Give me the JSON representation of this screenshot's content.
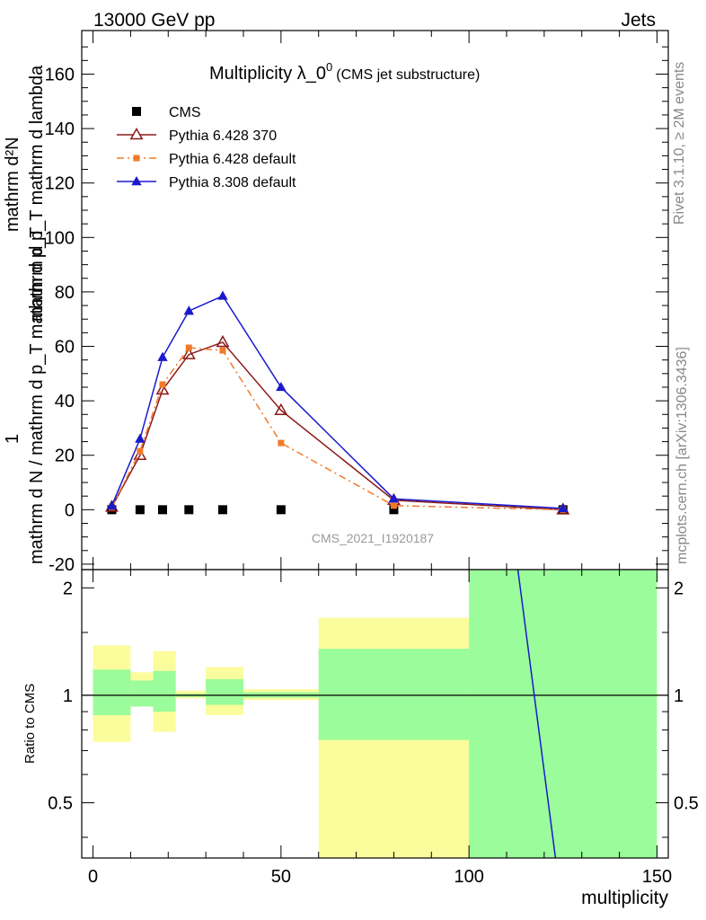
{
  "header": {
    "left": "13000 GeV pp",
    "right": "Jets"
  },
  "side_labels": {
    "rivet": "Rivet 3.1.10, ≥ 2M events",
    "mcplots": "mcplots.cern.ch [arXiv:1306.3436]"
  },
  "watermark": "CMS_2021_I1920187",
  "colors": {
    "cms": "#000000",
    "py6_370": "#8b1a1a",
    "py6_default": "#f07a2a",
    "py8_default": "#1a1acc",
    "band_green": "#9afc9a",
    "band_yellow": "#fbfc9c"
  },
  "chart_data": [
    {
      "type": "line",
      "title_main": "Multiplicity λ_0",
      "title_sup": "0",
      "title_sub": "(CMS jet substructure)",
      "xlabel": "",
      "ylabel_numerator": "mathrm d²N",
      "ylabel_numerator_sub": "mathrm d p_T mathrm d lambda",
      "ylabel_one": "1",
      "ylabel_denominator": "mathrm d N / mathrm d p_T mathrm d p_T",
      "xlim": [
        -3,
        153
      ],
      "ylim": [
        -22,
        176
      ],
      "yticks": [
        -20,
        0,
        20,
        40,
        60,
        80,
        100,
        120,
        140,
        160
      ],
      "xticks": [
        0,
        50,
        100,
        150
      ],
      "legend_position": "top-left",
      "series": [
        {
          "name": "CMS",
          "style": "squares",
          "x": [
            5,
            12.5,
            18.5,
            25.5,
            34.5,
            50,
            80,
            125
          ],
          "y": [
            0,
            0,
            0,
            0,
            0,
            0,
            0,
            0
          ]
        },
        {
          "name": "Pythia 6.428 370",
          "style": "open-triangles",
          "x": [
            5,
            12.5,
            18.5,
            25.5,
            34.5,
            50,
            80,
            125
          ],
          "y": [
            1,
            20,
            44,
            57,
            61.5,
            36.5,
            3.5,
            0
          ]
        },
        {
          "name": "Pythia 6.428 default",
          "style": "small-squares-dashdot",
          "x": [
            5,
            12.5,
            18.5,
            25.5,
            34.5,
            50,
            80,
            125
          ],
          "y": [
            1,
            21.5,
            46,
            59.5,
            58.5,
            24.5,
            1.5,
            0
          ]
        },
        {
          "name": "Pythia 8.308 default",
          "style": "filled-triangles",
          "x": [
            5,
            12.5,
            18.5,
            25.5,
            34.5,
            50,
            80,
            125
          ],
          "y": [
            1.5,
            26,
            56,
            73,
            78.5,
            45,
            4,
            0.5
          ]
        }
      ]
    },
    {
      "type": "area",
      "ylabel": "Ratio to CMS",
      "xlabel": "multiplicity",
      "xlim": [
        -3,
        153
      ],
      "ylim": [
        0.35,
        2.25
      ],
      "yscale": "log",
      "yticks": [
        0.5,
        1,
        2
      ],
      "ytick_labels": [
        "0.5",
        "1",
        "2"
      ],
      "xticks": [
        0,
        50,
        100,
        150
      ],
      "reference_line": 1,
      "bands": [
        {
          "x0": 0,
          "x1": 10,
          "green": [
            0.88,
            1.18
          ],
          "yellow": [
            0.74,
            1.38
          ]
        },
        {
          "x0": 10,
          "x1": 16,
          "green": [
            0.93,
            1.1
          ],
          "yellow": [
            0.93,
            1.16
          ]
        },
        {
          "x0": 16,
          "x1": 22,
          "green": [
            0.9,
            1.17
          ],
          "yellow": [
            0.79,
            1.33
          ]
        },
        {
          "x0": 22,
          "x1": 30,
          "green": [
            0.99,
            1.01
          ],
          "yellow": [
            0.98,
            1.03
          ]
        },
        {
          "x0": 30,
          "x1": 40,
          "green": [
            0.94,
            1.11
          ],
          "yellow": [
            0.88,
            1.2
          ]
        },
        {
          "x0": 40,
          "x1": 60,
          "green": [
            0.985,
            1.02
          ],
          "yellow": [
            0.97,
            1.04
          ]
        },
        {
          "x0": 60,
          "x1": 100,
          "green": [
            0.75,
            1.35
          ],
          "yellow": [
            0.35,
            1.65
          ]
        },
        {
          "x0": 100,
          "x1": 150,
          "green": [
            0.35,
            2.25
          ],
          "yellow": [
            0.35,
            2.25
          ]
        }
      ],
      "series": [
        {
          "name": "Pythia 8.308 default",
          "x": [
            113,
            123
          ],
          "y": [
            2.25,
            0.35
          ]
        }
      ]
    }
  ]
}
